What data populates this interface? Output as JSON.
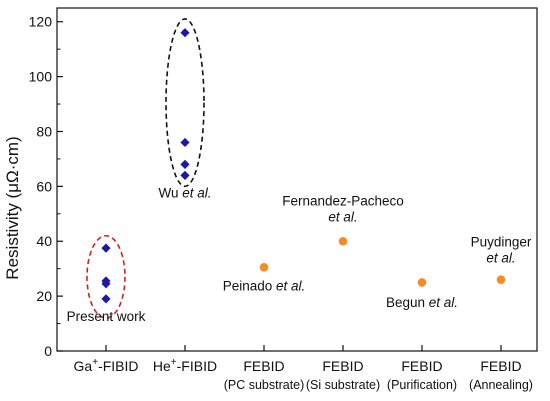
{
  "chart_data": {
    "type": "scatter",
    "ylabel": "Resistivity (μΩ·cm)",
    "xlabel": "",
    "ylim": [
      0,
      125
    ],
    "yticks": [
      0,
      20,
      40,
      60,
      80,
      100,
      120
    ],
    "grid": false,
    "categories": [
      {
        "main_prefix": "Ga",
        "main_sup": "+",
        "main_suffix": "-FIBID",
        "sub": ""
      },
      {
        "main_prefix": "He",
        "main_sup": "+",
        "main_suffix": "-FIBID",
        "sub": ""
      },
      {
        "main_prefix": "FEBID",
        "main_sup": "",
        "main_suffix": "",
        "sub": "(PC substrate)"
      },
      {
        "main_prefix": "FEBID",
        "main_sup": "",
        "main_suffix": "",
        "sub": "(Si substrate)"
      },
      {
        "main_prefix": "FEBID",
        "main_sup": "",
        "main_suffix": "",
        "sub": "(Purification)"
      },
      {
        "main_prefix": "FEBID",
        "main_sup": "",
        "main_suffix": "",
        "sub": "(Annealing)"
      }
    ],
    "series": [
      {
        "marker": "diamond",
        "color": "#1a1aa6",
        "points": [
          {
            "cat": 0,
            "y": 37.5
          },
          {
            "cat": 0,
            "y": 25.5
          },
          {
            "cat": 0,
            "y": 24.5
          },
          {
            "cat": 0,
            "y": 19
          },
          {
            "cat": 1,
            "y": 116
          },
          {
            "cat": 1,
            "y": 76
          },
          {
            "cat": 1,
            "y": 68
          },
          {
            "cat": 1,
            "y": 64
          }
        ]
      },
      {
        "marker": "circle",
        "color": "#f28c28",
        "points": [
          {
            "cat": 2,
            "y": 30.5
          },
          {
            "cat": 3,
            "y": 40
          },
          {
            "cat": 4,
            "y": 25
          },
          {
            "cat": 5,
            "y": 26
          }
        ]
      }
    ],
    "groups": [
      {
        "cat": 0,
        "y_low": 12,
        "y_high": 42,
        "color": "#d62020"
      },
      {
        "cat": 1,
        "y_low": 60,
        "y_high": 121,
        "color": "#111111"
      }
    ],
    "annotations": [
      {
        "lines": [
          {
            "text": "Present work",
            "italic": ""
          }
        ],
        "cat": 0,
        "y": 11
      },
      {
        "lines": [
          {
            "text": "Wu ",
            "italic": "et al."
          }
        ],
        "cat": 1,
        "y": 56
      },
      {
        "lines": [
          {
            "text": "Peinado ",
            "italic": "et al."
          }
        ],
        "cat": 2,
        "y": 22
      },
      {
        "lines": [
          {
            "text": "Fernandez-Pacheco",
            "italic": ""
          },
          {
            "text": "",
            "italic": "et al."
          }
        ],
        "cat": 3,
        "y": 53
      },
      {
        "lines": [
          {
            "text": "Begun ",
            "italic": "et al."
          }
        ],
        "cat": 4,
        "y": 16
      },
      {
        "lines": [
          {
            "text": "Puydinger",
            "italic": ""
          },
          {
            "text": "",
            "italic": "et al."
          }
        ],
        "cat": 5,
        "y": 38
      }
    ]
  }
}
